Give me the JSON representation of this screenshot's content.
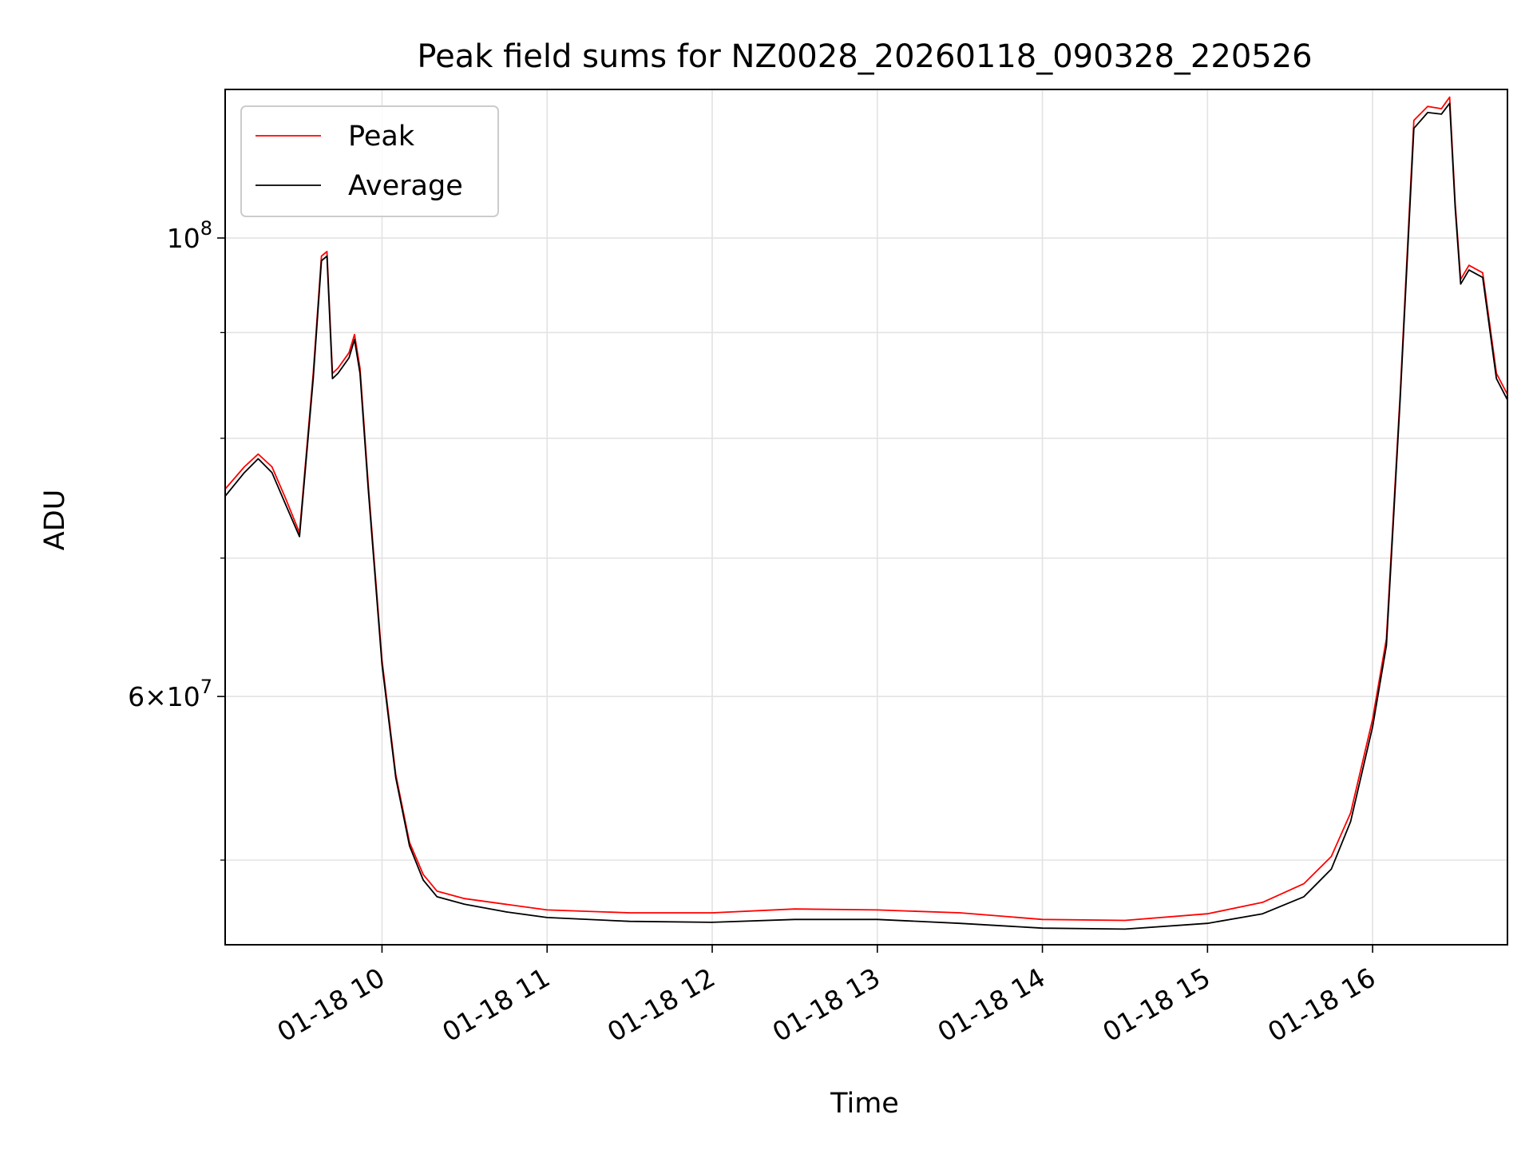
{
  "chart_data": {
    "type": "line",
    "title": "Peak field sums for NZ0028_20260118_090328_220526",
    "xlabel": "Time",
    "ylabel": "ADU",
    "x_tick_labels": [
      "01-18 10",
      "01-18 11",
      "01-18 12",
      "01-18 13",
      "01-18 14",
      "01-18 15",
      "01-18 16"
    ],
    "y_tick_labels": [
      {
        "base": "10",
        "exp": "8",
        "value": 100000000
      },
      {
        "mantissa": "6",
        "base": "10",
        "exp": "7",
        "value": 60000000
      }
    ],
    "y_scale": "log",
    "ylim": [
      45500000,
      118000000
    ],
    "xlim": [
      "2026-01-18 09:03",
      "2026-01-18 16:49"
    ],
    "grid": true,
    "legend_position": "top-left",
    "series": [
      {
        "name": "Peak",
        "color": "#ff0000",
        "x": [
          "2026-01-18 09:03",
          "2026-01-18 09:10",
          "2026-01-18 09:15",
          "2026-01-18 09:20",
          "2026-01-18 09:25",
          "2026-01-18 09:30",
          "2026-01-18 09:35",
          "2026-01-18 09:38",
          "2026-01-18 09:40",
          "2026-01-18 09:42",
          "2026-01-18 09:44",
          "2026-01-18 09:48",
          "2026-01-18 09:50",
          "2026-01-18 09:52",
          "2026-01-18 09:55",
          "2026-01-18 10:00",
          "2026-01-18 10:05",
          "2026-01-18 10:10",
          "2026-01-18 10:15",
          "2026-01-18 10:20",
          "2026-01-18 10:30",
          "2026-01-18 10:45",
          "2026-01-18 11:00",
          "2026-01-18 11:30",
          "2026-01-18 12:00",
          "2026-01-18 12:30",
          "2026-01-18 13:00",
          "2026-01-18 13:30",
          "2026-01-18 14:00",
          "2026-01-18 14:30",
          "2026-01-18 15:00",
          "2026-01-18 15:20",
          "2026-01-18 15:35",
          "2026-01-18 15:45",
          "2026-01-18 15:52",
          "2026-01-18 16:00",
          "2026-01-18 16:05",
          "2026-01-18 16:10",
          "2026-01-18 16:15",
          "2026-01-18 16:20",
          "2026-01-18 16:25",
          "2026-01-18 16:28",
          "2026-01-18 16:30",
          "2026-01-18 16:32",
          "2026-01-18 16:35",
          "2026-01-18 16:40",
          "2026-01-18 16:45",
          "2026-01-18 16:49"
        ],
        "values": [
          75600000,
          77500000,
          78600000,
          77500000,
          74800000,
          72000000,
          86000000,
          98000000,
          98500000,
          86000000,
          86500000,
          88000000,
          89800000,
          86500000,
          76000000,
          62500000,
          55000000,
          51000000,
          49200000,
          48300000,
          47900000,
          47600000,
          47300000,
          47150000,
          47150000,
          47350000,
          47300000,
          47150000,
          46800000,
          46750000,
          47100000,
          47700000,
          48700000,
          50200000,
          52700000,
          58500000,
          64000000,
          84000000,
          114000000,
          115800000,
          115500000,
          117000000,
          104000000,
          95500000,
          97000000,
          96200000,
          86000000,
          84000000
        ]
      },
      {
        "name": "Average",
        "color": "#000000",
        "x": [
          "2026-01-18 09:03",
          "2026-01-18 09:10",
          "2026-01-18 09:15",
          "2026-01-18 09:20",
          "2026-01-18 09:25",
          "2026-01-18 09:30",
          "2026-01-18 09:35",
          "2026-01-18 09:38",
          "2026-01-18 09:40",
          "2026-01-18 09:42",
          "2026-01-18 09:44",
          "2026-01-18 09:48",
          "2026-01-18 09:50",
          "2026-01-18 09:52",
          "2026-01-18 09:55",
          "2026-01-18 10:00",
          "2026-01-18 10:05",
          "2026-01-18 10:10",
          "2026-01-18 10:15",
          "2026-01-18 10:20",
          "2026-01-18 10:30",
          "2026-01-18 10:45",
          "2026-01-18 11:00",
          "2026-01-18 11:30",
          "2026-01-18 12:00",
          "2026-01-18 12:30",
          "2026-01-18 13:00",
          "2026-01-18 13:30",
          "2026-01-18 14:00",
          "2026-01-18 14:30",
          "2026-01-18 15:00",
          "2026-01-18 15:20",
          "2026-01-18 15:35",
          "2026-01-18 15:45",
          "2026-01-18 15:52",
          "2026-01-18 16:00",
          "2026-01-18 16:05",
          "2026-01-18 16:10",
          "2026-01-18 16:15",
          "2026-01-18 16:20",
          "2026-01-18 16:25",
          "2026-01-18 16:28",
          "2026-01-18 16:30",
          "2026-01-18 16:32",
          "2026-01-18 16:35",
          "2026-01-18 16:40",
          "2026-01-18 16:45",
          "2026-01-18 16:49"
        ],
        "values": [
          75000000,
          77000000,
          78200000,
          77000000,
          74300000,
          71700000,
          85500000,
          97500000,
          98000000,
          85500000,
          86000000,
          87500000,
          89300000,
          86000000,
          75600000,
          62200000,
          54800000,
          50800000,
          48900000,
          48000000,
          47600000,
          47200000,
          46900000,
          46700000,
          46650000,
          46800000,
          46800000,
          46600000,
          46350000,
          46300000,
          46600000,
          47100000,
          48000000,
          49500000,
          52200000,
          58000000,
          63500000,
          83500000,
          113000000,
          115000000,
          114800000,
          116200000,
          103500000,
          95000000,
          96500000,
          95700000,
          85500000,
          83500000
        ]
      }
    ]
  }
}
